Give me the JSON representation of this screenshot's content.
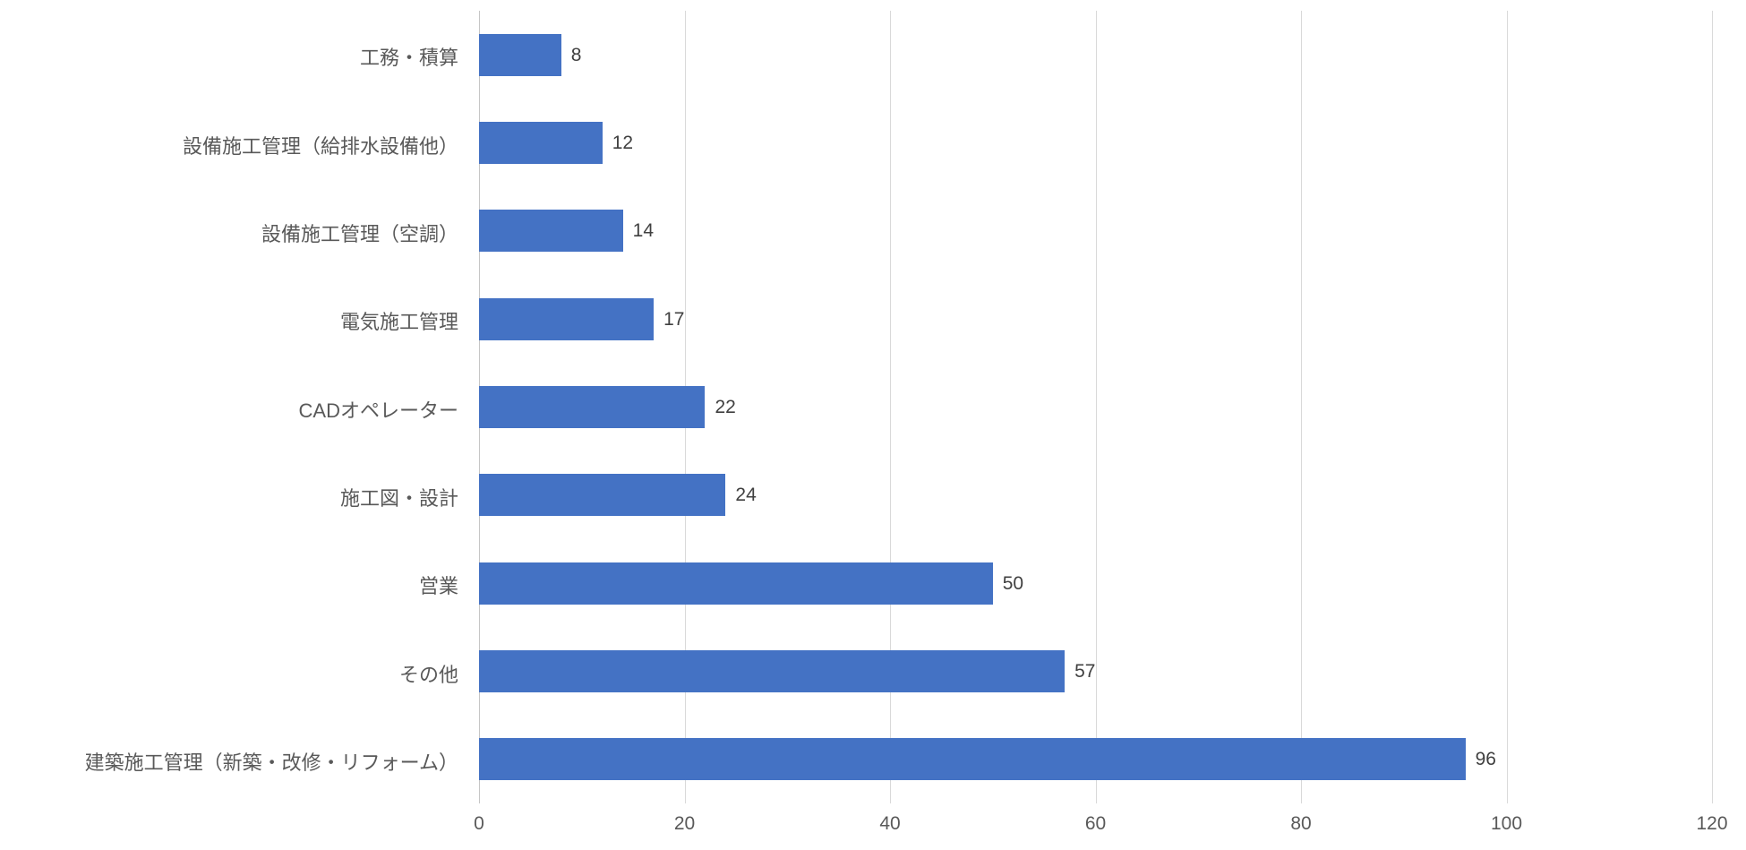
{
  "chart_data": {
    "type": "bar",
    "orientation": "horizontal",
    "title": "",
    "xlabel": "",
    "ylabel": "",
    "categories": [
      "工務・積算",
      "設備施工管理（給排水設備他）",
      "設備施工管理（空調）",
      "電気施工管理",
      "CADオペレーター",
      "施工図・設計",
      "営業",
      "その他",
      "建築施工管理（新築・改修・リフォーム）"
    ],
    "values": [
      8,
      12,
      14,
      17,
      22,
      24,
      50,
      57,
      96
    ],
    "xlim": [
      0,
      120
    ],
    "xticks": [
      0,
      20,
      40,
      60,
      80,
      100,
      120
    ],
    "grid": true,
    "legend": false,
    "data_labels": true,
    "colors": {
      "bar": "#4472C4",
      "gridline": "#D9D9D9",
      "axis_line": "#C6C6C6",
      "category_label": "#595959",
      "value_label": "#404040",
      "background": "#FFFFFF"
    }
  }
}
